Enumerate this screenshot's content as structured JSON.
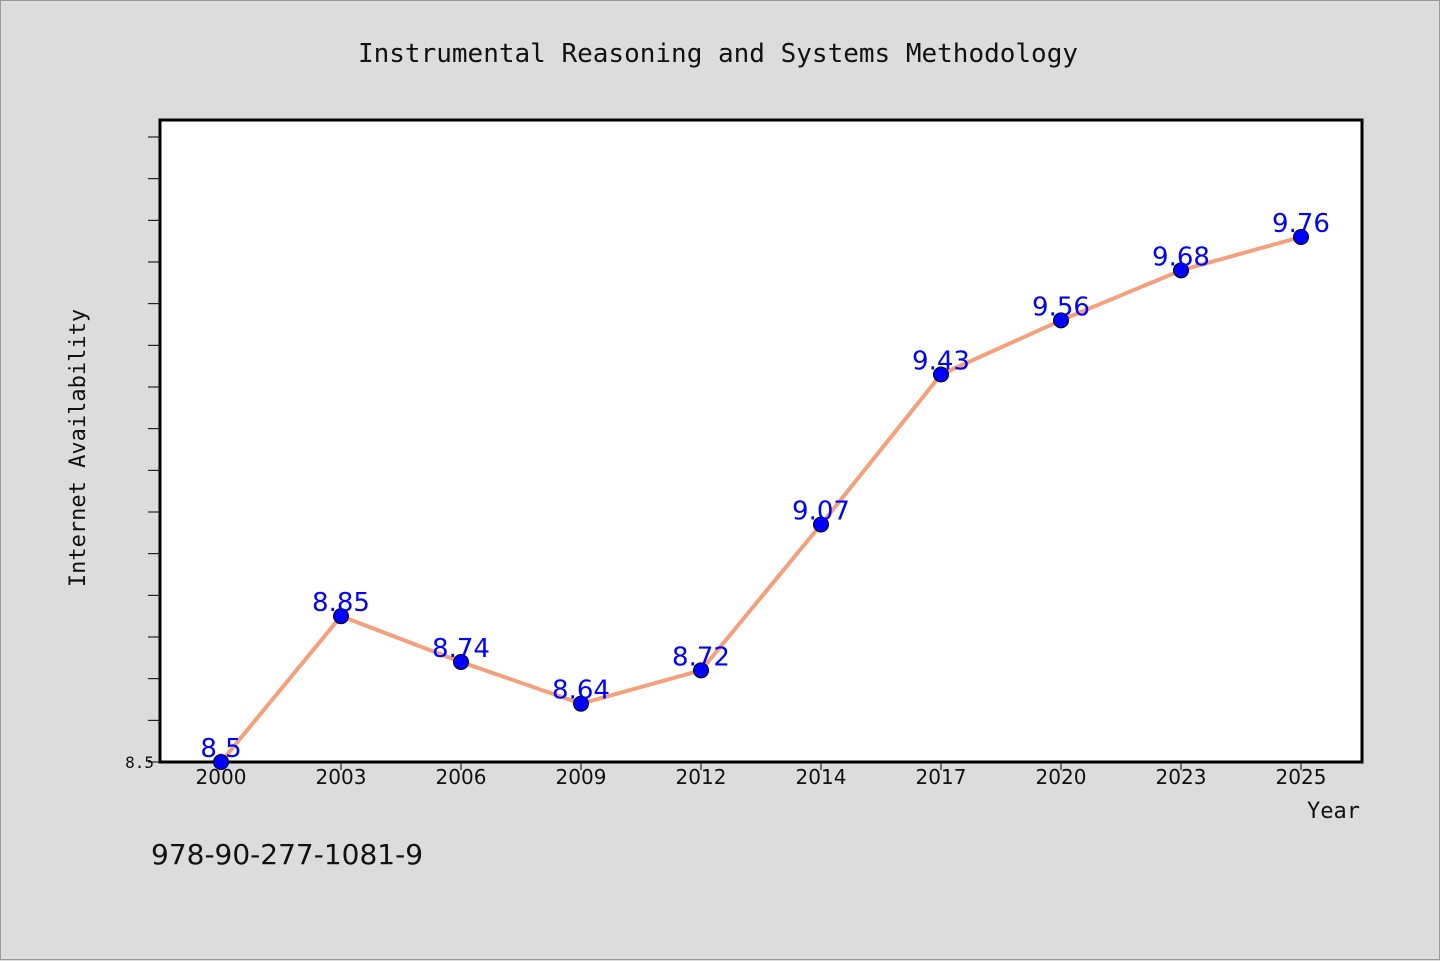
{
  "chart_data": {
    "type": "line",
    "title": "Instrumental Reasoning and Systems Methodology",
    "xlabel": "Year",
    "ylabel": "Internet Availability",
    "categories": [
      "2000",
      "2003",
      "2006",
      "2009",
      "2012",
      "2014",
      "2017",
      "2020",
      "2023",
      "2025"
    ],
    "series": [
      {
        "values": [
          8.5,
          8.85,
          8.74,
          8.64,
          8.72,
          9.07,
          9.43,
          9.56,
          9.68,
          9.76
        ],
        "labels": [
          "8.5",
          "8.85",
          "8.74",
          "8.64",
          "8.72",
          "9.07",
          "9.43",
          "9.56",
          "9.68",
          "9.76"
        ],
        "line_color": "#f4a07c",
        "marker_color": "#0000ff"
      }
    ],
    "ylim": [
      8.5,
      10.0
    ],
    "y_tick_step": 0.1,
    "y_tick_labels": [
      "8.5"
    ],
    "grid": false,
    "background": "#ffffff"
  },
  "footer": {
    "isbn": "978-90-277-1081-9"
  }
}
